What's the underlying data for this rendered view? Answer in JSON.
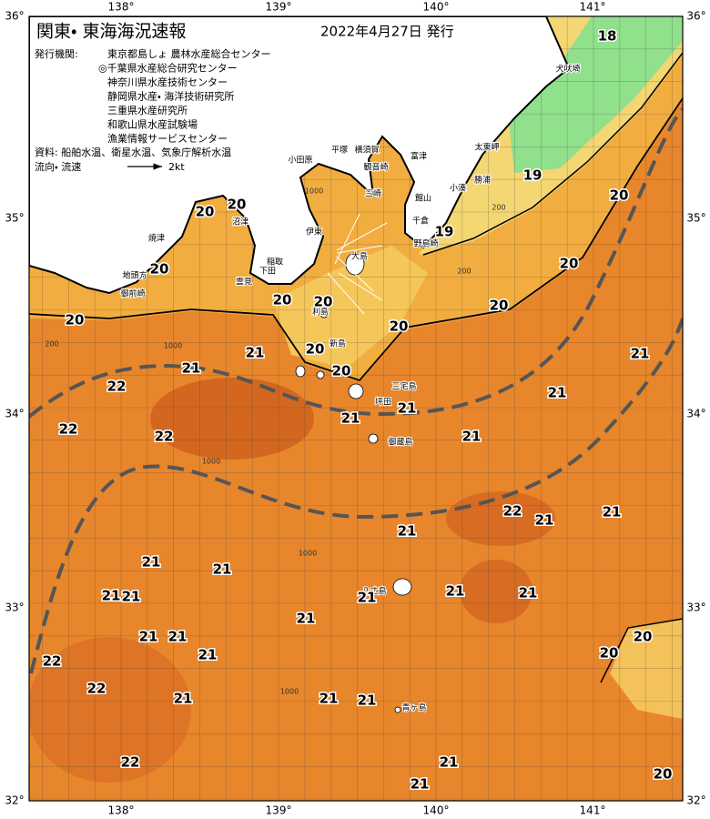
{
  "header": {
    "title": "関東・ 東海海況速報",
    "issued": "2022年4月27日 発行"
  },
  "info": {
    "publisher_label": "発行機関:",
    "publishers": [
      "東京都島しょ 農林水産総合センター",
      "◎千葉県水産総合研究センター",
      "神奈川県水産技術センター",
      "静岡県水産・ 海洋技術研究所",
      "三重県水産研究所",
      "和歌山県水産試験場",
      "漁業情報サービスセンター"
    ],
    "source": "資料: 船舶水温、衛星水温、気象庁解析水温",
    "flow_label": "流向・ 流速",
    "flow_scale": "2kt"
  },
  "axes": {
    "longitude": [
      "138°",
      "139°",
      "140°",
      "141°"
    ],
    "latitude": [
      "36°",
      "35°",
      "34°",
      "33°",
      "32°"
    ]
  },
  "places": [
    "犬吠埼",
    "太東岬",
    "勝浦",
    "小湊",
    "富津",
    "平塚",
    "横須賀",
    "観音崎",
    "小田原",
    "三崎",
    "館山",
    "千倉",
    "野島崎",
    "伊東",
    "大島",
    "稲取",
    "下田",
    "雲見",
    "沼津",
    "焼津",
    "地頭方",
    "御前崎",
    "利島",
    "新島",
    "三宅島",
    "坪田",
    "御蔵島",
    "八丈島",
    "青ヶ島"
  ],
  "temperatures": [
    18,
    19,
    19,
    20,
    20,
    20,
    20,
    20,
    20,
    20,
    20,
    20,
    20,
    20,
    20,
    21,
    21,
    22,
    22,
    22,
    21,
    21,
    21,
    21,
    21,
    22,
    21,
    21,
    21,
    21,
    21,
    21,
    21,
    21,
    21,
    21,
    21,
    21,
    21,
    21,
    20,
    20,
    22,
    22,
    21,
    21,
    21,
    22,
    21,
    21,
    20
  ],
  "depths": [
    1000,
    200,
    200,
    1000,
    200,
    1000,
    1000,
    1000
  ]
}
